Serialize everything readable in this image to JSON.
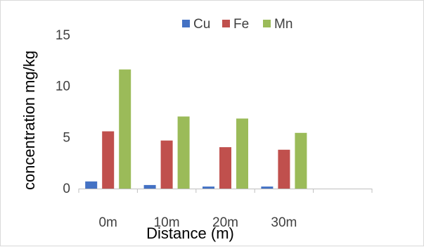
{
  "chart_data": {
    "type": "bar",
    "categories": [
      "0m",
      "10m",
      "20m",
      "30m",
      ""
    ],
    "series": [
      {
        "name": "Cu",
        "color": "#4472C4",
        "values": [
          0.7,
          0.35,
          0.2,
          0.2,
          null
        ]
      },
      {
        "name": "Fe",
        "color": "#C0504D",
        "values": [
          5.6,
          4.7,
          4.05,
          3.8,
          null
        ]
      },
      {
        "name": "Mn",
        "color": "#9BBB59",
        "values": [
          11.65,
          7.05,
          6.85,
          5.45,
          null
        ]
      }
    ],
    "title": "",
    "xlabel": "Distance (m)",
    "ylabel": "concentration mg/kg",
    "ylim": [
      0,
      15
    ],
    "yticks": [
      "0",
      "5",
      "10",
      "15"
    ],
    "grid": false,
    "legend_position": "top"
  }
}
